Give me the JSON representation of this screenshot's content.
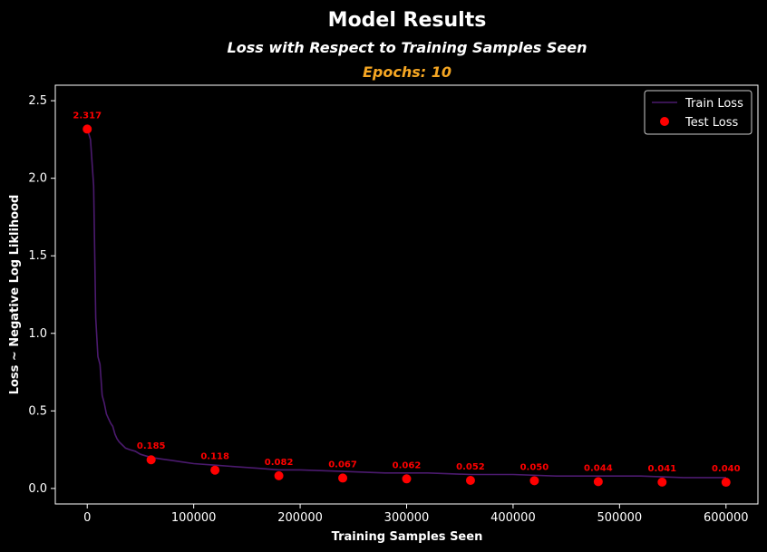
{
  "chart_data": {
    "type": "line",
    "title": "Model Results",
    "subtitle": "Loss with Respect to Training Samples Seen",
    "epochs_label": "Epochs: 10",
    "xlabel": "Training Samples Seen",
    "ylabel": "Loss ~ Negative Log Liklihood",
    "xlim": [
      -30000,
      630000
    ],
    "ylim": [
      -0.1,
      2.6
    ],
    "x_ticks": [
      0,
      100000,
      200000,
      300000,
      400000,
      500000,
      600000
    ],
    "x_tick_labels": [
      "0",
      "100000",
      "200000",
      "300000",
      "400000",
      "500000",
      "600000"
    ],
    "y_ticks": [
      0.0,
      0.5,
      1.0,
      1.5,
      2.0,
      2.5
    ],
    "y_tick_labels": [
      "0.0",
      "0.5",
      "1.0",
      "1.5",
      "2.0",
      "2.5"
    ],
    "legend_position": "top-right",
    "grid": false,
    "series": [
      {
        "name": "Train Loss",
        "kind": "line",
        "color": "#4b1a6e",
        "x": [
          0,
          3000,
          6000,
          8000,
          10000,
          12000,
          14000,
          16000,
          18000,
          20000,
          22000,
          24000,
          26000,
          28000,
          30000,
          33000,
          36000,
          40000,
          45000,
          50000,
          60000,
          70000,
          80000,
          90000,
          100000,
          120000,
          140000,
          160000,
          180000,
          200000,
          240000,
          280000,
          320000,
          360000,
          400000,
          440000,
          480000,
          520000,
          560000,
          600000
        ],
        "y": [
          2.32,
          2.25,
          1.95,
          1.1,
          0.85,
          0.8,
          0.6,
          0.55,
          0.48,
          0.45,
          0.42,
          0.4,
          0.35,
          0.32,
          0.3,
          0.28,
          0.26,
          0.25,
          0.24,
          0.22,
          0.2,
          0.19,
          0.18,
          0.17,
          0.16,
          0.15,
          0.14,
          0.13,
          0.12,
          0.12,
          0.11,
          0.1,
          0.1,
          0.09,
          0.09,
          0.08,
          0.08,
          0.08,
          0.07,
          0.07
        ]
      },
      {
        "name": "Test Loss",
        "kind": "scatter",
        "color": "#ff0000",
        "x": [
          0,
          60000,
          120000,
          180000,
          240000,
          300000,
          360000,
          420000,
          480000,
          540000,
          600000
        ],
        "y": [
          2.317,
          0.185,
          0.118,
          0.082,
          0.067,
          0.062,
          0.052,
          0.05,
          0.044,
          0.041,
          0.04
        ],
        "labels": [
          "2.317",
          "0.185",
          "0.118",
          "0.082",
          "0.067",
          "0.062",
          "0.052",
          "0.050",
          "0.044",
          "0.041",
          "0.040"
        ]
      }
    ]
  }
}
